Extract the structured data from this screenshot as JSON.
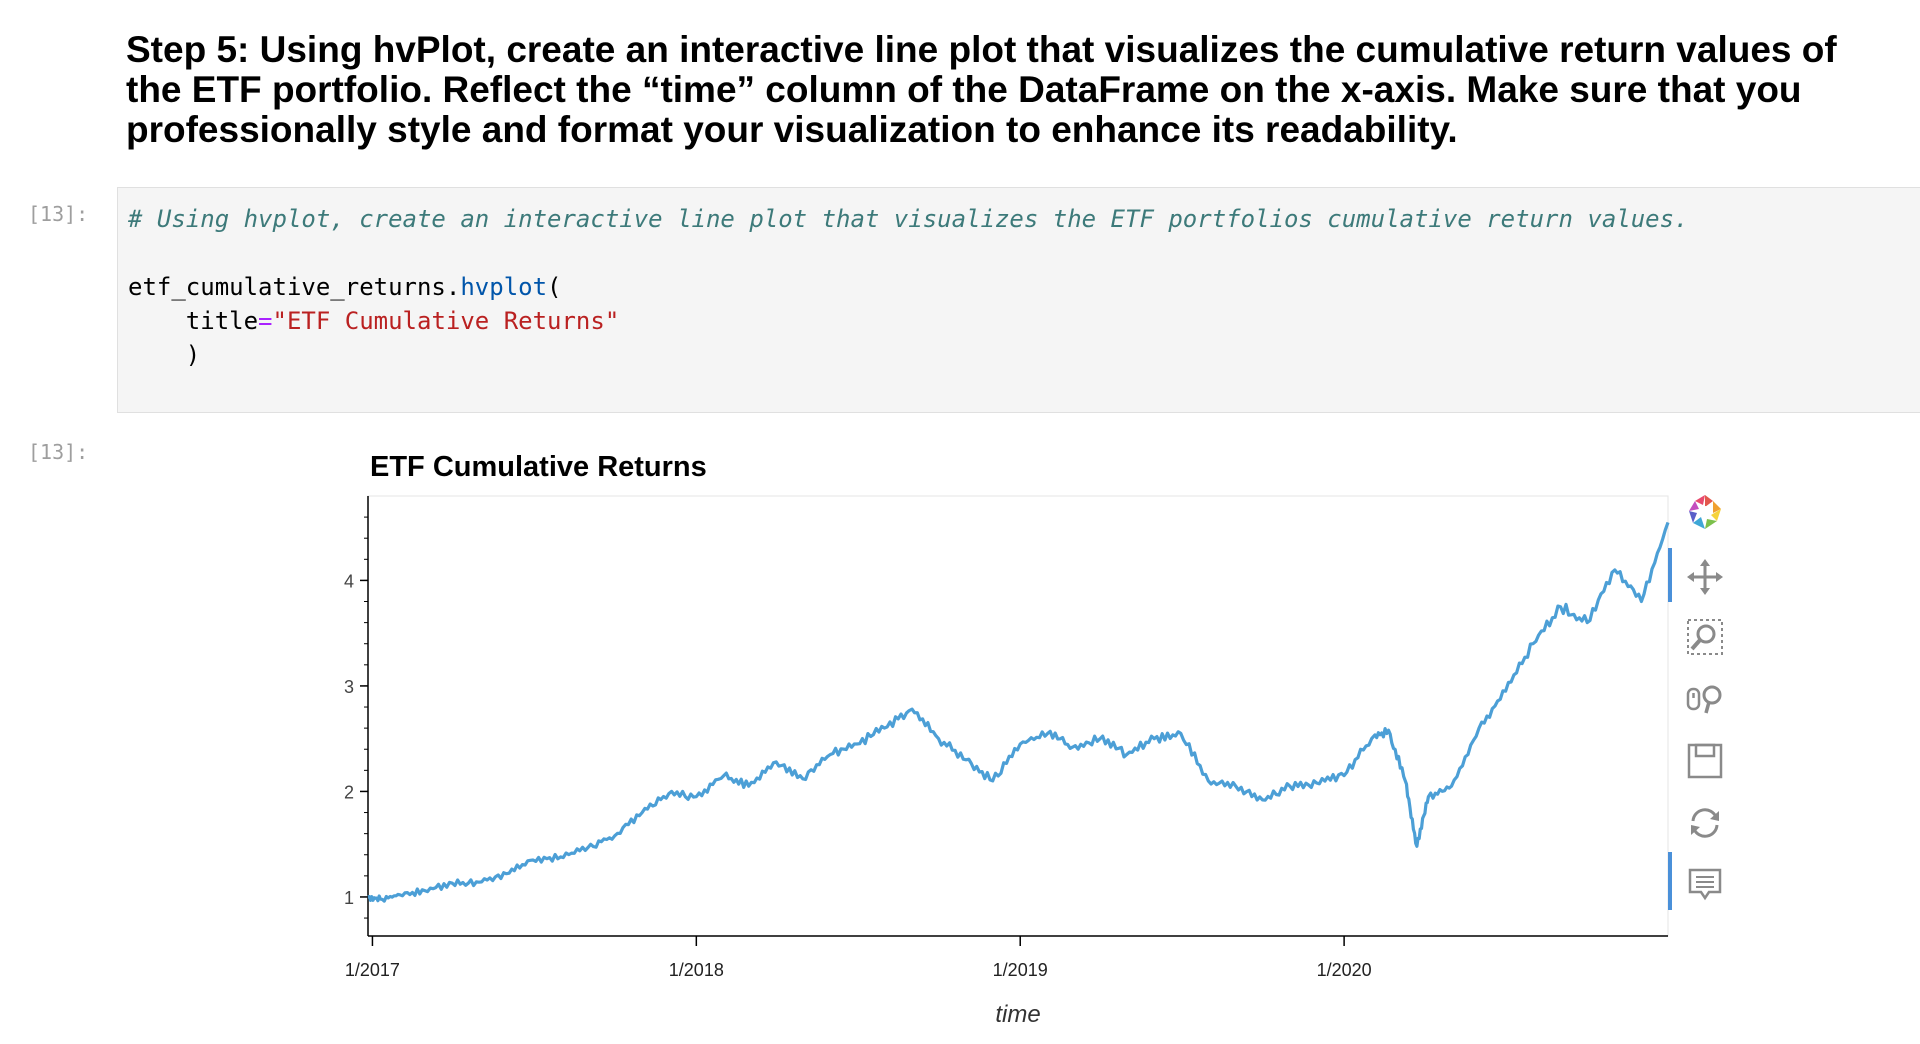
{
  "markdown": {
    "heading": "Step 5: Using hvPlot, create an interactive line plot that visualizes the cumulative return values of the ETF portfolio. Reflect the “time” column of the DataFrame on the x-axis. Make sure that you professionally style and format your visualization to enhance its readability."
  },
  "input_prompt": "[13]:",
  "output_prompt": "[13]:",
  "code": {
    "comment": "# Using hvplot, create an interactive line plot that visualizes the ETF portfolios cumulative return values.",
    "line2_obj": "etf_cumulative_returns.",
    "line2_fn": "hvplot",
    "line2_paren": "(",
    "line3_kw": "title",
    "line3_eq": "=",
    "line3_str": "\"ETF Cumulative Returns\"",
    "line4": ")"
  },
  "chart_data": {
    "type": "line",
    "title": "ETF Cumulative Returns",
    "xlabel": "time",
    "ylabel": "",
    "x_ticks": [
      "1/2017",
      "1/2018",
      "1/2019",
      "1/2020"
    ],
    "y_ticks": [
      1,
      2,
      3,
      4
    ],
    "xlim": [
      "2016-12-27",
      "2020-12-31"
    ],
    "ylim": [
      0.63,
      4.8
    ],
    "series": [
      {
        "color": "#4c9fd6",
        "x": [
          "2016-12-27",
          "2017-01-10",
          "2017-02-01",
          "2017-03-01",
          "2017-04-01",
          "2017-05-01",
          "2017-06-01",
          "2017-07-01",
          "2017-08-01",
          "2017-09-01",
          "2017-10-01",
          "2017-11-01",
          "2017-12-01",
          "2018-01-01",
          "2018-02-01",
          "2018-03-01",
          "2018-04-01",
          "2018-05-01",
          "2018-06-01",
          "2018-07-01",
          "2018-08-01",
          "2018-09-01",
          "2018-10-01",
          "2018-11-01",
          "2018-12-01",
          "2019-01-01",
          "2019-02-01",
          "2019-03-01",
          "2019-04-01",
          "2019-05-01",
          "2019-06-01",
          "2019-07-01",
          "2019-08-01",
          "2019-09-01",
          "2019-10-01",
          "2019-11-01",
          "2019-12-01",
          "2020-01-01",
          "2020-02-01",
          "2020-02-20",
          "2020-03-10",
          "2020-03-23",
          "2020-04-05",
          "2020-05-01",
          "2020-06-01",
          "2020-07-01",
          "2020-08-01",
          "2020-09-01",
          "2020-10-01",
          "2020-11-01",
          "2020-12-01",
          "2020-12-31"
        ],
        "values": [
          1.0,
          0.98,
          1.02,
          1.06,
          1.13,
          1.14,
          1.22,
          1.35,
          1.38,
          1.47,
          1.58,
          1.8,
          1.98,
          1.95,
          2.15,
          2.05,
          2.28,
          2.12,
          2.35,
          2.45,
          2.6,
          2.78,
          2.5,
          2.3,
          2.1,
          2.45,
          2.55,
          2.42,
          2.5,
          2.35,
          2.5,
          2.55,
          2.1,
          2.05,
          1.92,
          2.05,
          2.08,
          2.15,
          2.5,
          2.58,
          2.1,
          1.48,
          1.95,
          2.05,
          2.6,
          2.95,
          3.4,
          3.75,
          3.6,
          4.1,
          3.8,
          4.55
        ]
      }
    ]
  },
  "toolbar": {
    "icons": [
      "bokeh-logo-icon",
      "pan-icon",
      "box-zoom-icon",
      "wheel-zoom-icon",
      "save-icon",
      "reset-icon",
      "hover-icon"
    ]
  }
}
